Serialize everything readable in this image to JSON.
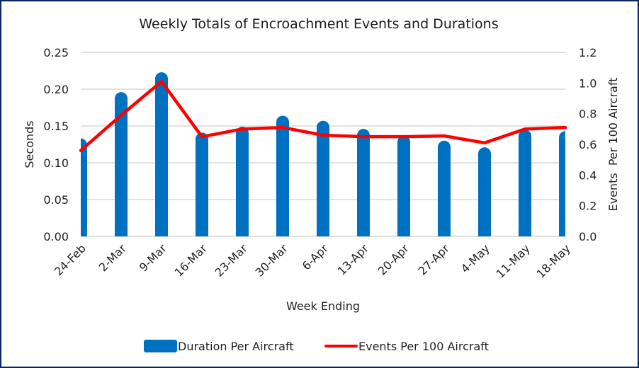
{
  "chart_data": {
    "type": "bar",
    "title": "Weekly Totals of Encroachment Events and Durations",
    "xlabel": "Week Ending",
    "ylabel": "Seconds",
    "y2label": "Events  Per 100 Aircraft",
    "categories": [
      "24-Feb",
      "2-Mar",
      "9-Mar",
      "16-Mar",
      "23-Mar",
      "30-Mar",
      "6-Apr",
      "13-Apr",
      "20-Apr",
      "27-Apr",
      "4-May",
      "11-May",
      "18-May"
    ],
    "series": [
      {
        "name": "Duration Per Aircraft",
        "type": "bar",
        "axis": "left",
        "color": "#0070c0",
        "values": [
          0.133,
          0.196,
          0.223,
          0.141,
          0.149,
          0.164,
          0.157,
          0.146,
          0.137,
          0.13,
          0.121,
          0.145,
          0.143
        ]
      },
      {
        "name": "Events Per 100 Aircraft",
        "type": "line",
        "axis": "right",
        "color": "#ff0000",
        "values": [
          0.56,
          0.79,
          1.01,
          0.65,
          0.7,
          0.71,
          0.66,
          0.65,
          0.65,
          0.655,
          0.61,
          0.7,
          0.71
        ]
      }
    ],
    "ylim": [
      0,
      0.25
    ],
    "yticks": [
      "0.00",
      "0.05",
      "0.10",
      "0.15",
      "0.20",
      "0.25"
    ],
    "y2lim": [
      0,
      1.2
    ],
    "y2ticks": [
      "0.0",
      "0.2",
      "0.4",
      "0.6",
      "0.8",
      "1.0",
      "1.2"
    ],
    "grid": true,
    "legend_position": "bottom"
  }
}
